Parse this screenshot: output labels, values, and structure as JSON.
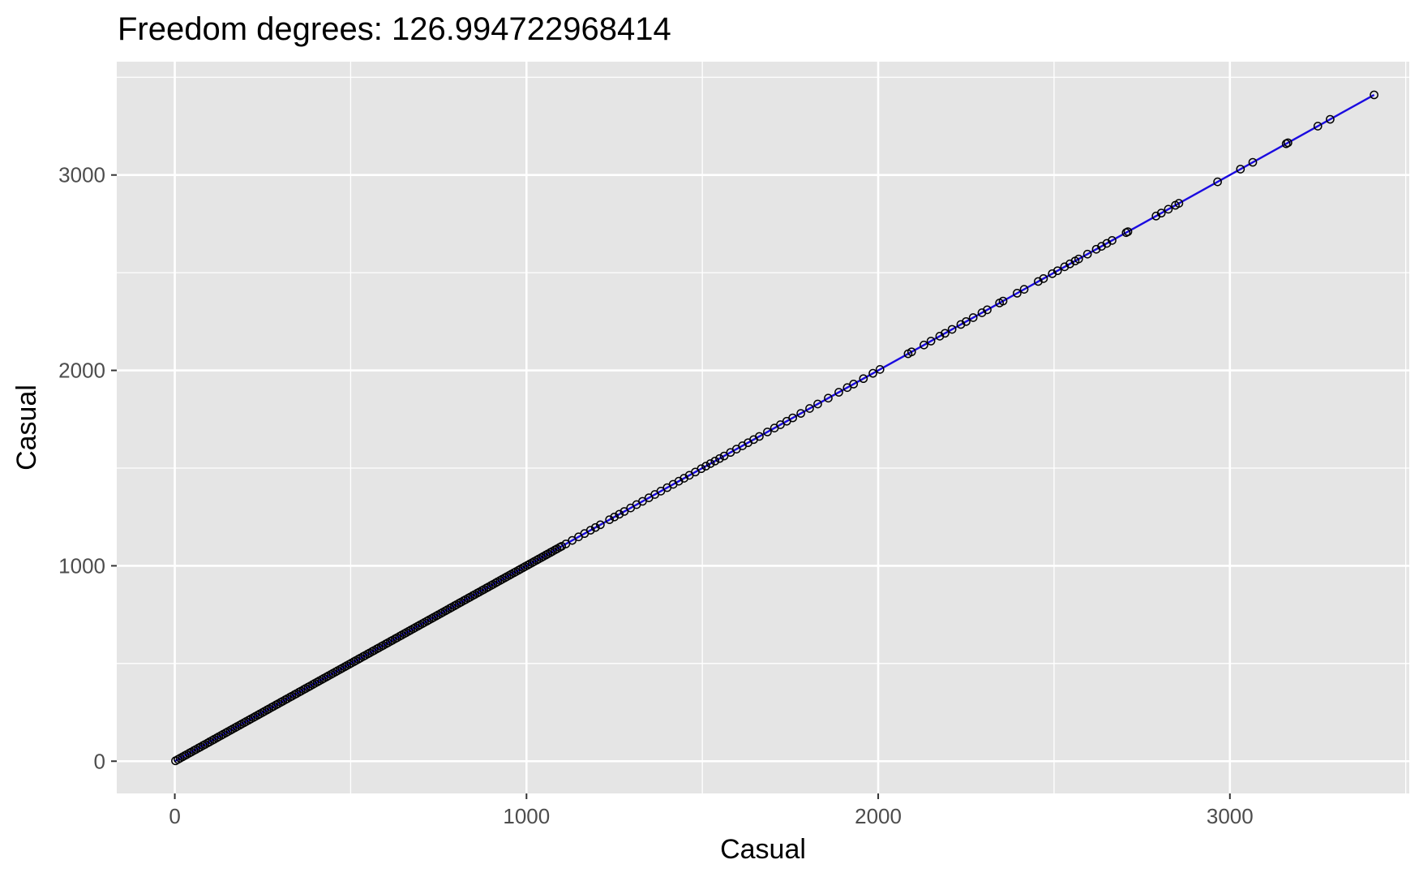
{
  "chart_data": {
    "type": "scatter",
    "title": "Freedom degrees: 126.994722968414",
    "xlabel": "Casual",
    "ylabel": "Casual",
    "xlim": [
      -165,
      3510
    ],
    "ylim": [
      -165,
      3580
    ],
    "x_ticks": [
      0,
      1000,
      2000,
      3000
    ],
    "x_tick_labels": [
      "0",
      "1000",
      "2000",
      "3000"
    ],
    "y_ticks": [
      0,
      1000,
      2000,
      3000
    ],
    "y_tick_labels": [
      "0",
      "1000",
      "2000",
      "3000"
    ],
    "grid": true,
    "legend": "none",
    "colors": {
      "panel": "#e5e5e5",
      "grid": "#ffffff",
      "line": "#1a0ae0",
      "point_stroke": "#000000"
    },
    "series": [
      {
        "mark": "line",
        "x": [
          0,
          3410
        ],
        "y": [
          0,
          3410
        ]
      },
      {
        "mark": "point",
        "x": [
          2,
          9,
          15,
          22,
          28,
          34,
          41,
          47,
          54,
          60,
          67,
          73,
          80,
          86,
          93,
          99,
          106,
          112,
          119,
          125,
          132,
          138,
          145,
          151,
          158,
          164,
          171,
          177,
          184,
          190,
          197,
          203,
          210,
          216,
          223,
          229,
          236,
          242,
          249,
          255,
          262,
          268,
          275,
          281,
          288,
          294,
          301,
          307,
          314,
          320,
          327,
          333,
          340,
          346,
          353,
          359,
          366,
          372,
          379,
          385,
          392,
          398,
          405,
          411,
          418,
          424,
          431,
          437,
          444,
          450,
          457,
          463,
          470,
          476,
          483,
          489,
          496,
          502,
          509,
          515,
          522,
          528,
          535,
          541,
          548,
          554,
          561,
          567,
          574,
          580,
          587,
          593,
          600,
          606,
          613,
          619,
          626,
          632,
          639,
          645,
          652,
          658,
          665,
          671,
          678,
          684,
          691,
          697,
          704,
          710,
          717,
          723,
          730,
          736,
          743,
          749,
          756,
          762,
          769,
          775,
          782,
          788,
          795,
          801,
          808,
          814,
          821,
          827,
          834,
          840,
          847,
          853,
          860,
          866,
          873,
          879,
          886,
          892,
          899,
          905,
          912,
          918,
          925,
          931,
          938,
          944,
          951,
          957,
          964,
          970,
          977,
          983,
          990,
          996,
          1003,
          1009,
          1016,
          1022,
          1029,
          1035,
          1042,
          1048,
          1055,
          1061,
          1068,
          1074,
          1081,
          1087,
          1094,
          1100,
          1112,
          1130,
          1148,
          1165,
          1182,
          1196,
          1210,
          1236,
          1250,
          1264,
          1278,
          1296,
          1313,
          1330,
          1348,
          1365,
          1382,
          1400,
          1417,
          1433,
          1448,
          1463,
          1480,
          1497,
          1510,
          1523,
          1536,
          1549,
          1562,
          1580,
          1597,
          1614,
          1630,
          1646,
          1662,
          1685,
          1705,
          1722,
          1740,
          1757,
          1780,
          1805,
          1828,
          1858,
          1888,
          1912,
          1930,
          1958,
          1985,
          2005,
          2085,
          2095,
          2130,
          2150,
          2175,
          2190,
          2210,
          2235,
          2250,
          2270,
          2295,
          2310,
          2345,
          2355,
          2395,
          2415,
          2455,
          2470,
          2495,
          2510,
          2530,
          2545,
          2560,
          2570,
          2595,
          2620,
          2635,
          2650,
          2665,
          2705,
          2710,
          2790,
          2805,
          2825,
          2845,
          2855,
          2965,
          3030,
          3065,
          3160,
          3165,
          3250,
          3285,
          3410
        ],
        "y": [
          2,
          9,
          15,
          22,
          28,
          34,
          41,
          47,
          54,
          60,
          67,
          73,
          80,
          86,
          93,
          99,
          106,
          112,
          119,
          125,
          132,
          138,
          145,
          151,
          158,
          164,
          171,
          177,
          184,
          190,
          197,
          203,
          210,
          216,
          223,
          229,
          236,
          242,
          249,
          255,
          262,
          268,
          275,
          281,
          288,
          294,
          301,
          307,
          314,
          320,
          327,
          333,
          340,
          346,
          353,
          359,
          366,
          372,
          379,
          385,
          392,
          398,
          405,
          411,
          418,
          424,
          431,
          437,
          444,
          450,
          457,
          463,
          470,
          476,
          483,
          489,
          496,
          502,
          509,
          515,
          522,
          528,
          535,
          541,
          548,
          554,
          561,
          567,
          574,
          580,
          587,
          593,
          600,
          606,
          613,
          619,
          626,
          632,
          639,
          645,
          652,
          658,
          665,
          671,
          678,
          684,
          691,
          697,
          704,
          710,
          717,
          723,
          730,
          736,
          743,
          749,
          756,
          762,
          769,
          775,
          782,
          788,
          795,
          801,
          808,
          814,
          821,
          827,
          834,
          840,
          847,
          853,
          860,
          866,
          873,
          879,
          886,
          892,
          899,
          905,
          912,
          918,
          925,
          931,
          938,
          944,
          951,
          957,
          964,
          970,
          977,
          983,
          990,
          996,
          1003,
          1009,
          1016,
          1022,
          1029,
          1035,
          1042,
          1048,
          1055,
          1061,
          1068,
          1074,
          1081,
          1087,
          1094,
          1100,
          1112,
          1130,
          1148,
          1165,
          1182,
          1196,
          1210,
          1236,
          1250,
          1264,
          1278,
          1296,
          1313,
          1330,
          1348,
          1365,
          1382,
          1400,
          1417,
          1433,
          1448,
          1463,
          1480,
          1497,
          1510,
          1523,
          1536,
          1549,
          1562,
          1580,
          1597,
          1614,
          1630,
          1646,
          1662,
          1685,
          1705,
          1722,
          1740,
          1757,
          1780,
          1805,
          1828,
          1858,
          1888,
          1912,
          1930,
          1958,
          1985,
          2005,
          2085,
          2095,
          2130,
          2150,
          2175,
          2190,
          2210,
          2235,
          2250,
          2270,
          2295,
          2310,
          2345,
          2355,
          2395,
          2415,
          2455,
          2470,
          2495,
          2510,
          2530,
          2545,
          2560,
          2570,
          2595,
          2620,
          2635,
          2650,
          2665,
          2705,
          2710,
          2790,
          2805,
          2825,
          2845,
          2855,
          2965,
          3030,
          3065,
          3160,
          3165,
          3250,
          3285,
          3410
        ]
      }
    ]
  }
}
